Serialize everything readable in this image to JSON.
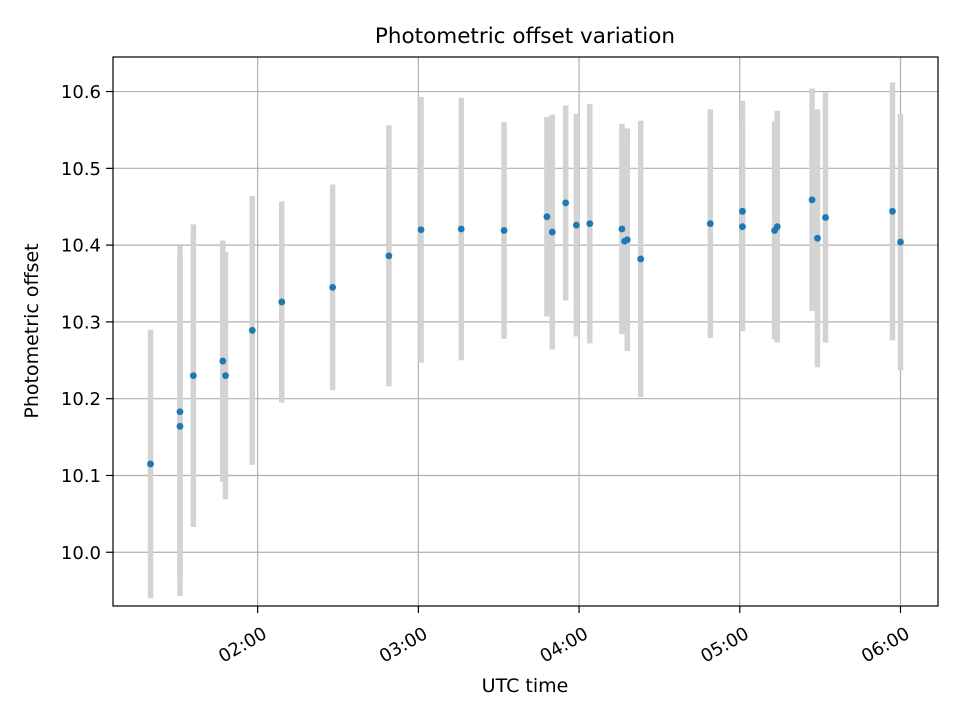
{
  "chart_data": {
    "type": "scatter",
    "title": "Photometric offset variation",
    "xlabel": "UTC time",
    "ylabel": "Photometric offset",
    "x_axis": "time",
    "xlim": [
      "01:06",
      "06:14"
    ],
    "ylim": [
      9.93,
      10.645
    ],
    "xticks": [
      "02:00",
      "03:00",
      "04:00",
      "05:00",
      "06:00"
    ],
    "yticks": [
      "10.0",
      "10.1",
      "10.2",
      "10.3",
      "10.4",
      "10.5",
      "10.6"
    ],
    "grid": true,
    "colors": {
      "points": "#1f77b4",
      "errorbars": "#d3d3d3",
      "grid": "#b0b0b0"
    },
    "points": [
      {
        "time": "01:20",
        "y": 10.115,
        "err": 0.175
      },
      {
        "time": "01:31",
        "y": 10.183,
        "err": 0.216
      },
      {
        "time": "01:31",
        "y": 10.164,
        "err": 0.221
      },
      {
        "time": "01:36",
        "y": 10.23,
        "err": 0.197
      },
      {
        "time": "01:47",
        "y": 10.249,
        "err": 0.157
      },
      {
        "time": "01:48",
        "y": 10.23,
        "err": 0.161
      },
      {
        "time": "01:58",
        "y": 10.289,
        "err": 0.175
      },
      {
        "time": "02:09",
        "y": 10.326,
        "err": 0.131
      },
      {
        "time": "02:28",
        "y": 10.345,
        "err": 0.134
      },
      {
        "time": "02:49",
        "y": 10.386,
        "err": 0.17
      },
      {
        "time": "03:01",
        "y": 10.42,
        "err": 0.173
      },
      {
        "time": "03:16",
        "y": 10.421,
        "err": 0.171
      },
      {
        "time": "03:32",
        "y": 10.419,
        "err": 0.141
      },
      {
        "time": "03:48",
        "y": 10.437,
        "err": 0.13
      },
      {
        "time": "03:50",
        "y": 10.417,
        "err": 0.153
      },
      {
        "time": "03:55",
        "y": 10.455,
        "err": 0.127
      },
      {
        "time": "03:59",
        "y": 10.426,
        "err": 0.145
      },
      {
        "time": "04:04",
        "y": 10.428,
        "err": 0.156
      },
      {
        "time": "04:16",
        "y": 10.421,
        "err": 0.137
      },
      {
        "time": "04:17",
        "y": 10.405,
        "err": 0.119
      },
      {
        "time": "04:18",
        "y": 10.407,
        "err": 0.145
      },
      {
        "time": "04:23",
        "y": 10.382,
        "err": 0.18
      },
      {
        "time": "04:49",
        "y": 10.428,
        "err": 0.149
      },
      {
        "time": "05:01",
        "y": 10.444,
        "err": 0.144
      },
      {
        "time": "05:01",
        "y": 10.424,
        "err": 0.136
      },
      {
        "time": "05:13",
        "y": 10.419,
        "err": 0.142
      },
      {
        "time": "05:14",
        "y": 10.424,
        "err": 0.151
      },
      {
        "time": "05:27",
        "y": 10.459,
        "err": 0.145
      },
      {
        "time": "05:29",
        "y": 10.409,
        "err": 0.168
      },
      {
        "time": "05:32",
        "y": 10.436,
        "err": 0.163
      },
      {
        "time": "05:57",
        "y": 10.444,
        "err": 0.168
      },
      {
        "time": "06:00",
        "y": 10.404,
        "err": 0.167
      }
    ]
  }
}
